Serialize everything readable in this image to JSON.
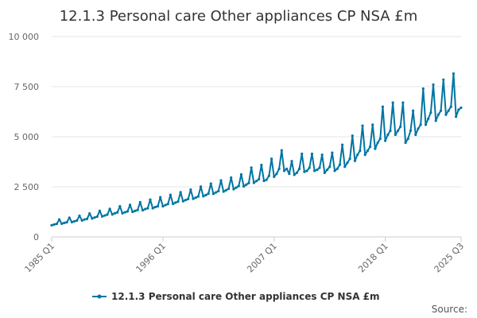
{
  "chart_data": {
    "type": "line",
    "title": "12.1.3 Personal care Other appliances CP NSA £m",
    "xlabel": "",
    "ylabel": "",
    "ylim": [
      0,
      10000
    ],
    "yticks": [
      {
        "value": 0,
        "label": "0"
      },
      {
        "value": 2500,
        "label": "2 500"
      },
      {
        "value": 5000,
        "label": "5 000"
      },
      {
        "value": 7500,
        "label": "7 500"
      },
      {
        "value": 10000,
        "label": "10 000"
      }
    ],
    "xticks": [
      {
        "index": 0,
        "label": "1985 Q1"
      },
      {
        "index": 44,
        "label": "1996 Q1"
      },
      {
        "index": 88,
        "label": "2007 Q1"
      },
      {
        "index": 132,
        "label": "2018 Q1"
      },
      {
        "index": 162,
        "label": "2025 Q3"
      }
    ],
    "series": [
      {
        "name": "12.1.3 Personal care Other appliances CP NSA £m",
        "color": "#0075a3",
        "start": "1985 Q1",
        "frequency": "quarterly",
        "values": [
          580,
          620,
          650,
          870,
          660,
          700,
          730,
          960,
          740,
          780,
          820,
          1060,
          820,
          870,
          900,
          1170,
          920,
          970,
          1010,
          1300,
          1020,
          1070,
          1110,
          1400,
          1120,
          1180,
          1220,
          1530,
          1180,
          1230,
          1270,
          1600,
          1250,
          1300,
          1340,
          1730,
          1330,
          1390,
          1430,
          1860,
          1430,
          1490,
          1530,
          1980,
          1530,
          1590,
          1640,
          2100,
          1650,
          1710,
          1760,
          2230,
          1780,
          1840,
          1890,
          2360,
          1900,
          1960,
          2020,
          2510,
          2030,
          2090,
          2160,
          2660,
          2150,
          2220,
          2290,
          2820,
          2260,
          2330,
          2400,
          2960,
          2380,
          2460,
          2540,
          3120,
          2520,
          2610,
          2690,
          3460,
          2700,
          2790,
          2880,
          3590,
          2800,
          2850,
          3050,
          3900,
          3000,
          3150,
          3400,
          4320,
          3300,
          3400,
          3150,
          3780,
          3100,
          3200,
          3400,
          4150,
          3250,
          3300,
          3450,
          4150,
          3300,
          3350,
          3450,
          4100,
          3200,
          3350,
          3500,
          4200,
          3300,
          3400,
          3600,
          4600,
          3500,
          3700,
          3900,
          5050,
          3800,
          4100,
          4300,
          5550,
          4100,
          4300,
          4500,
          5600,
          4400,
          4700,
          4900,
          6500,
          4800,
          5100,
          5300,
          6700,
          5100,
          5300,
          5500,
          6700,
          4700,
          4900,
          5300,
          6300,
          5100,
          5400,
          5600,
          7400,
          5600,
          5900,
          6200,
          7600,
          5800,
          6100,
          6300,
          7850,
          6100,
          6300,
          6500,
          8150,
          6000,
          6350,
          6450
        ]
      }
    ],
    "legend": {
      "position": "bottom",
      "label": "12.1.3 Personal care Other appliances CP NSA £m"
    },
    "source_label": "Source:"
  }
}
